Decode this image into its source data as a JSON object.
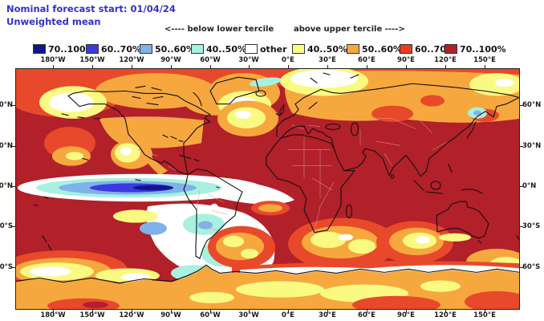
{
  "header": {
    "line1": "Nominal forecast start: 01/04/24",
    "line2": "Unweighted mean",
    "text_color": "#3232c8"
  },
  "legend": {
    "below_header": "<---- below lower tercile",
    "above_header": "above upper tercile ---->",
    "items": [
      {
        "label": "70..100%",
        "color": "#14148c"
      },
      {
        "label": "60..70%",
        "color": "#3a3ae0"
      },
      {
        "label": "50..60%",
        "color": "#7fb2e8"
      },
      {
        "label": "40..50%",
        "color": "#a8f0e0"
      },
      {
        "label": "other",
        "color": "#ffffff"
      },
      {
        "label": "40..50%",
        "color": "#fafa82"
      },
      {
        "label": "50..60%",
        "color": "#f6a83f"
      },
      {
        "label": "60..70%",
        "color": "#ee3c20"
      },
      {
        "label": "70..100%",
        "color": "#b2202a"
      }
    ]
  },
  "map": {
    "x_ticks": [
      "180°W",
      "150°W",
      "120°W",
      "90°W",
      "60°W",
      "30°W",
      "0°E",
      "30°E",
      "60°E",
      "90°E",
      "120°E",
      "150°E"
    ],
    "y_ticks_left": [
      "60°N",
      "30°N",
      "0°N",
      "30°S",
      "60°S"
    ],
    "y_ticks_right": [
      "60°N",
      "30°N",
      "0°N",
      "30°S",
      "60°S"
    ],
    "palette": {
      "dark_red": "#b2202a",
      "orange_red": "#e8492a",
      "orange": "#f6a83f",
      "yellow": "#fafa82",
      "white": "#ffffff",
      "cyan": "#a8f0e0",
      "light_blue": "#7fb2e8",
      "blue": "#3a3ae0",
      "navy": "#14148c",
      "coastline": "#111111",
      "country_border": "#d89a94",
      "header_text": "#3232c8"
    }
  }
}
